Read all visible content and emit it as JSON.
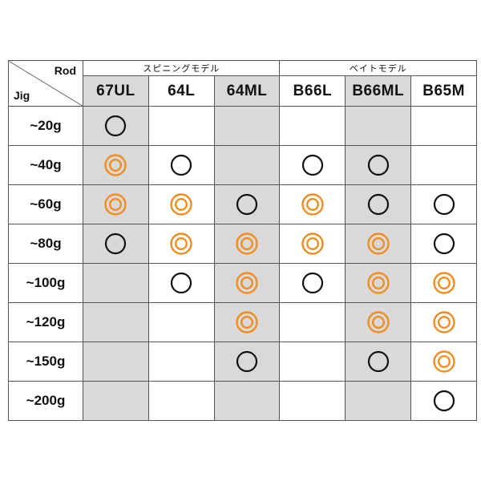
{
  "header": {
    "rod_label": "Rod",
    "jig_label": "Jig",
    "groups": [
      {
        "label": "スピニングモデル",
        "span": 3
      },
      {
        "label": "ベイトモデル",
        "span": 3
      }
    ],
    "models": [
      "67UL",
      "64L",
      "64ML",
      "B66L",
      "B66ML",
      "B65M"
    ]
  },
  "legend": {
    "single": "black single circle",
    "double": "orange double circle"
  },
  "colors": {
    "orange": "#F28C1E",
    "black": "#111111",
    "shade": "#d9d9d9"
  },
  "shaded_columns": [
    0,
    2,
    4
  ],
  "rows": [
    {
      "jig": "~20g",
      "cells": [
        "single",
        "",
        "",
        "",
        "",
        ""
      ]
    },
    {
      "jig": "~40g",
      "cells": [
        "double",
        "single",
        "",
        "single",
        "single",
        ""
      ]
    },
    {
      "jig": "~60g",
      "cells": [
        "double",
        "double",
        "single",
        "double",
        "single",
        "single"
      ]
    },
    {
      "jig": "~80g",
      "cells": [
        "single",
        "double",
        "double",
        "double",
        "double",
        "single"
      ]
    },
    {
      "jig": "~100g",
      "cells": [
        "",
        "single",
        "double",
        "single",
        "double",
        "double"
      ]
    },
    {
      "jig": "~120g",
      "cells": [
        "",
        "",
        "double",
        "",
        "double",
        "double"
      ]
    },
    {
      "jig": "~150g",
      "cells": [
        "",
        "",
        "single",
        "",
        "single",
        "double"
      ]
    },
    {
      "jig": "~200g",
      "cells": [
        "",
        "",
        "",
        "",
        "",
        "single"
      ]
    }
  ]
}
